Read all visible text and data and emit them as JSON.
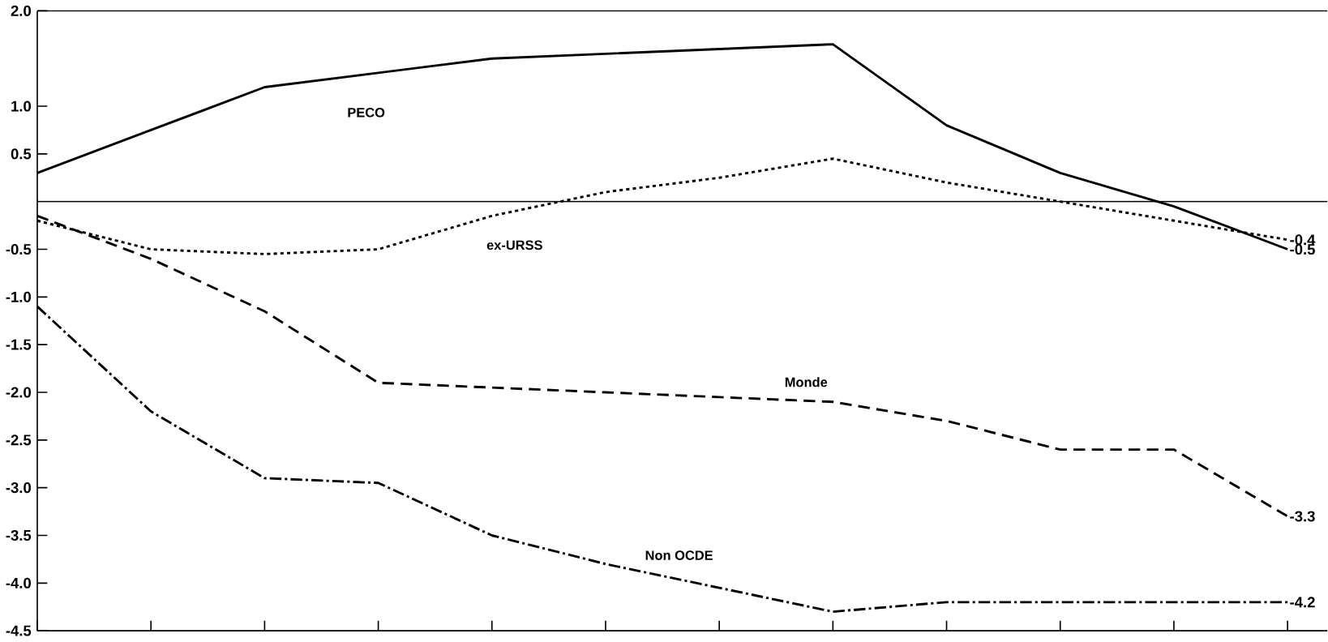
{
  "chart_data": {
    "type": "line",
    "categories": [
      null,
      null,
      null,
      null,
      null,
      null,
      null,
      null,
      null,
      null,
      null,
      null
    ],
    "series": [
      {
        "name": "PECO",
        "color": "#000000",
        "line_style": "solid",
        "values": [
          0.3,
          0.75,
          1.2,
          1.35,
          1.5,
          1.55,
          1.6,
          1.65,
          0.8,
          0.3,
          -0.05,
          -0.5
        ],
        "value_labels": [
          null,
          null,
          null,
          null,
          null,
          null,
          null,
          null,
          null,
          null,
          null,
          "-0.5"
        ]
      },
      {
        "name": "ex-URSS",
        "color": "#000000",
        "line_style": "dotted",
        "values": [
          -0.2,
          -0.5,
          -0.55,
          -0.5,
          -0.15,
          0.1,
          0.25,
          0.45,
          0.2,
          0,
          -0.2,
          -0.4
        ],
        "value_labels": [
          null,
          null,
          null,
          null,
          null,
          null,
          null,
          null,
          null,
          null,
          null,
          "-0.4"
        ]
      },
      {
        "name": "Monde",
        "color": "#000000",
        "line_style": "dashed",
        "values": [
          -0.15,
          -0.6,
          -1.15,
          -1.9,
          -1.95,
          -2.0,
          -2.05,
          -2.1,
          -2.3,
          -2.6,
          -2.6,
          -3.3
        ],
        "value_labels": [
          null,
          null,
          null,
          null,
          null,
          null,
          null,
          null,
          null,
          null,
          null,
          "-3.3"
        ]
      },
      {
        "name": "Non OCDE",
        "color": "#000000",
        "line_style": "dashdot",
        "values": [
          -1.1,
          -2.2,
          -2.9,
          -2.95,
          -3.5,
          -3.8,
          -4.05,
          -4.3,
          -4.2,
          -4.2,
          -4.2,
          -4.2
        ],
        "value_labels": [
          null,
          null,
          null,
          null,
          null,
          null,
          null,
          null,
          null,
          null,
          null,
          "-4.2"
        ]
      }
    ],
    "ylim": [
      -4.5,
      2.0
    ],
    "yticks": [
      {
        "value": 2,
        "label": "2.0"
      },
      {
        "value": 1,
        "label": "1.0"
      },
      0.5,
      -0.5,
      {
        "value": -1,
        "label": "-1.0"
      },
      -1.5,
      {
        "value": -2,
        "label": "-2.0"
      },
      -2.5,
      {
        "value": -3,
        "label": "-3.0"
      },
      -3.5,
      {
        "value": -4,
        "label": "-4.0"
      },
      -4.5
    ],
    "ref_lines": [
      {
        "axis": "y",
        "value": 0,
        "label": null
      }
    ],
    "legend": false,
    "grid": false,
    "marker": "none"
  }
}
